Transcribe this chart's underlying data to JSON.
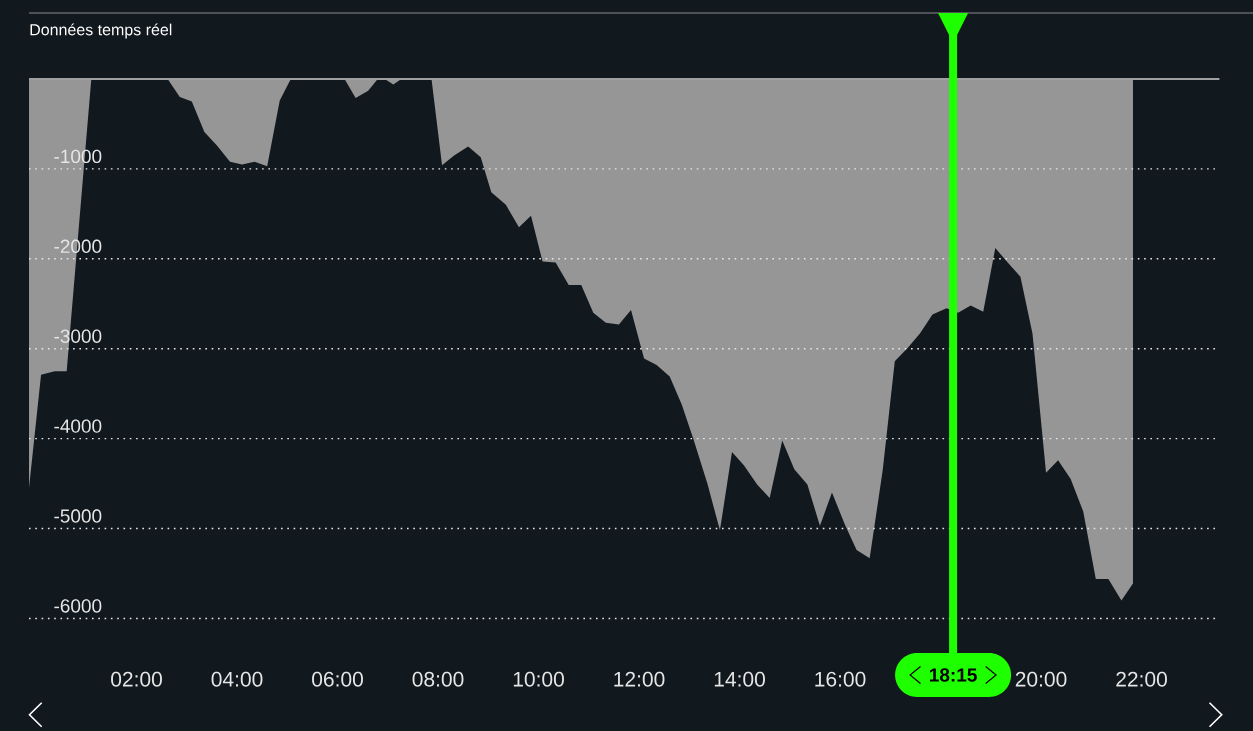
{
  "chart_data": {
    "type": "area",
    "title": "Données temps réel",
    "color": "#969696",
    "x": [
      -0.14,
      0.1,
      0.37,
      0.61,
      1.1,
      2.62,
      2.86,
      3.1,
      3.35,
      3.6,
      3.86,
      4.1,
      4.35,
      4.6,
      4.85,
      5.07,
      6.14,
      6.36,
      6.61,
      6.8,
      6.94,
      7.11,
      7.27,
      7.87,
      8.08,
      8.32,
      8.6,
      8.85,
      9.06,
      9.35,
      9.61,
      9.85,
      10.08,
      10.34,
      10.6,
      10.85,
      11.09,
      11.34,
      11.6,
      11.84,
      12.1,
      12.35,
      12.61,
      12.85,
      13.08,
      13.36,
      13.61,
      13.85,
      14.09,
      14.35,
      14.6,
      14.85,
      15.09,
      15.35,
      15.6,
      15.84,
      16.1,
      16.33,
      16.59,
      16.85,
      17.09,
      17.35,
      17.59,
      17.84,
      18.12,
      18.35,
      18.6,
      18.85,
      19.09,
      19.35,
      19.59,
      19.83,
      20.1,
      20.34,
      20.59,
      20.84,
      21.09,
      21.34,
      21.6,
      21.83
    ],
    "values": [
      -4550,
      -3290,
      -3250,
      -3250,
      0,
      0,
      -200,
      -250,
      -590,
      -740,
      -920,
      -950,
      -920,
      -970,
      -240,
      0,
      0,
      -210,
      -130,
      0,
      0,
      -60,
      0,
      0,
      -960,
      -850,
      -750,
      -870,
      -1260,
      -1400,
      -1650,
      -1520,
      -2030,
      -2040,
      -2290,
      -2290,
      -2600,
      -2710,
      -2730,
      -2570,
      -3110,
      -3180,
      -3310,
      -3620,
      -4000,
      -4500,
      -5020,
      -4150,
      -4300,
      -4510,
      -4660,
      -4020,
      -4340,
      -4510,
      -4970,
      -4600,
      -4960,
      -5240,
      -5330,
      -4350,
      -3140,
      -2990,
      -2830,
      -2620,
      -2550,
      -2600,
      -2520,
      -2590,
      -1880,
      -2050,
      -2200,
      -2830,
      -4380,
      -4240,
      -4450,
      -4810,
      -5560,
      -5560,
      -5800,
      -5610
    ],
    "xlim": [
      -0.14,
      23.55
    ],
    "ylim": [
      -6500,
      0
    ],
    "xticks": [
      {
        "value": 2,
        "label": "02:00"
      },
      {
        "value": 4,
        "label": "04:00"
      },
      {
        "value": 6,
        "label": "06:00"
      },
      {
        "value": 8,
        "label": "08:00"
      },
      {
        "value": 10,
        "label": "10:00"
      },
      {
        "value": 12,
        "label": "12:00"
      },
      {
        "value": 14,
        "label": "14:00"
      },
      {
        "value": 16,
        "label": "16:00"
      },
      {
        "value": 20,
        "label": "20:00"
      },
      {
        "value": 22,
        "label": "22:00"
      }
    ],
    "yticks": [
      -6000,
      -5000,
      -4000,
      -3000,
      -2000,
      -1000
    ],
    "grid": "y",
    "ref_lines": [
      {
        "axis": "x",
        "value": 18.25,
        "label": "18:15",
        "color": "#1eff00"
      }
    ]
  }
}
